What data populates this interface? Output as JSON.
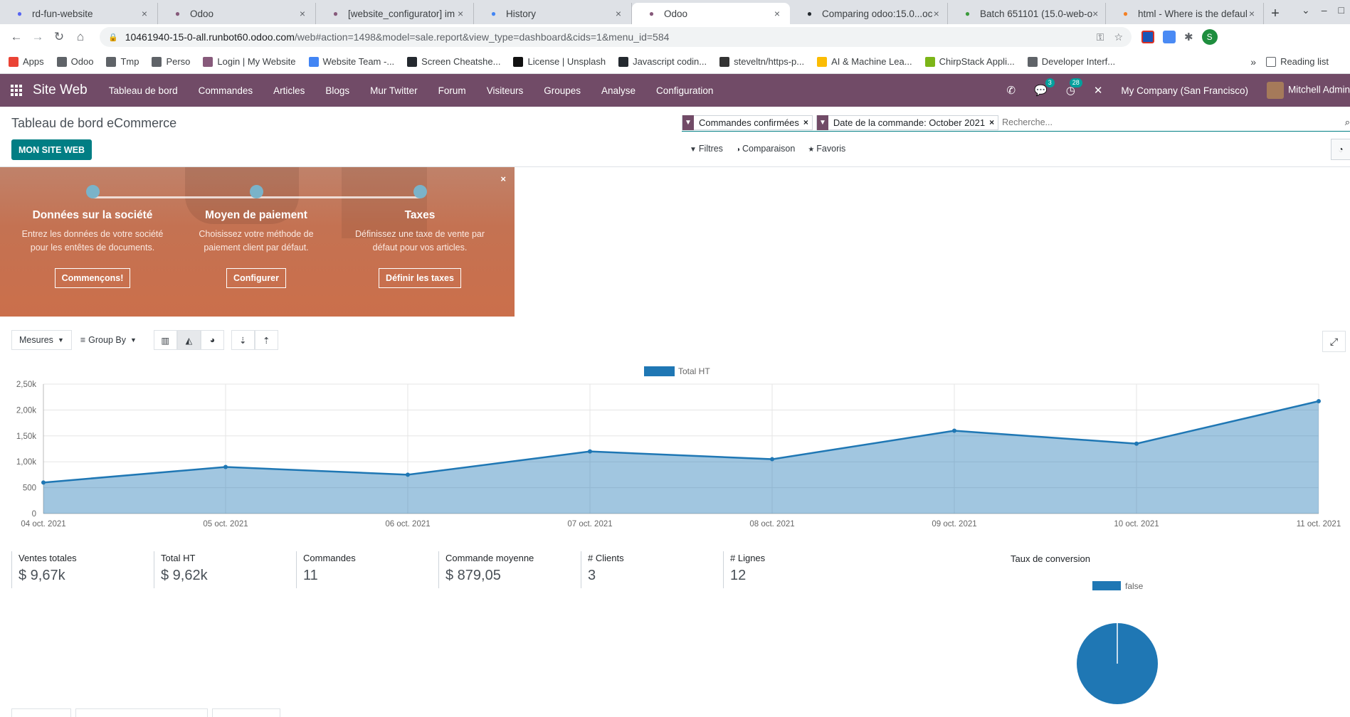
{
  "browser": {
    "tabs": [
      {
        "title": "rd-fun-website",
        "icon": "discord-icon",
        "color": "#5865f2"
      },
      {
        "title": "Odoo",
        "icon": "odoo-icon",
        "color": "#875a7b"
      },
      {
        "title": "[website_configurator] im",
        "icon": "odoo-icon",
        "color": "#875a7b"
      },
      {
        "title": "History",
        "icon": "history-icon",
        "color": "#4285f4"
      },
      {
        "title": "Odoo",
        "icon": "odoo-icon",
        "color": "#875a7b",
        "active": true
      },
      {
        "title": "Comparing odoo:15.0...oc",
        "icon": "github-icon",
        "color": "#24292f"
      },
      {
        "title": "Batch 651101 (15.0-web-o",
        "icon": "runbot-icon",
        "color": "#3c9b3c"
      },
      {
        "title": "html - Where is the defaul",
        "icon": "stackoverflow-icon",
        "color": "#f48024"
      }
    ],
    "url_host": "10461940-15-0-all.runbot60.odoo.com",
    "url_path": "/web#action=1498&model=sale.report&view_type=dashboard&cids=1&menu_id=584",
    "bookmarks": [
      {
        "label": "Apps",
        "color": "#ea4335"
      },
      {
        "label": "Odoo",
        "color": "#5f6368"
      },
      {
        "label": "Tmp",
        "color": "#5f6368"
      },
      {
        "label": "Perso",
        "color": "#5f6368"
      },
      {
        "label": "Login | My Website",
        "color": "#875a7b"
      },
      {
        "label": "Website Team -...",
        "color": "#4285f4"
      },
      {
        "label": "Screen Cheatshe...",
        "color": "#24292f"
      },
      {
        "label": "License | Unsplash",
        "color": "#111111"
      },
      {
        "label": "Javascript codin...",
        "color": "#24292f"
      },
      {
        "label": "steveltn/https-p...",
        "color": "#333333"
      },
      {
        "label": "AI & Machine Lea...",
        "color": "#fbbc04"
      },
      {
        "label": "ChirpStack Appli...",
        "color": "#7cb518"
      },
      {
        "label": "Developer Interf...",
        "color": "#5f6368"
      }
    ],
    "reading_list": "Reading list",
    "profile_initial": "S"
  },
  "navbar": {
    "brand": "Site Web",
    "menu": [
      "Tableau de bord",
      "Commandes",
      "Articles",
      "Blogs",
      "Mur Twitter",
      "Forum",
      "Visiteurs",
      "Groupes",
      "Analyse",
      "Configuration"
    ],
    "messages_count": "3",
    "activities_count": "28",
    "company": "My Company (San Francisco)",
    "user": "Mitchell Admin"
  },
  "control_panel": {
    "title": "Tableau de bord eCommerce",
    "primary_button": "MON SITE WEB",
    "facets": [
      "Commandes confirmées",
      "Date de la commande: October 2021"
    ],
    "search_placeholder": "Recherche...",
    "filters_label": "Filtres",
    "comparison_label": "Comparaison",
    "favorites_label": "Favoris"
  },
  "onboarding": {
    "steps": [
      {
        "title": "Données sur la société",
        "desc1": "Entrez les données de votre société",
        "desc2": "pour les entêtes de documents.",
        "button": "Commençons!"
      },
      {
        "title": "Moyen de paiement",
        "desc1": "Choisissez votre méthode de",
        "desc2": "paiement client par défaut.",
        "button": "Configurer"
      },
      {
        "title": "Taxes",
        "desc1": "Définissez une taxe de vente par",
        "desc2": "défaut pour vos articles.",
        "button": "Définir les taxes"
      }
    ]
  },
  "graph_toolbar": {
    "measures": "Mesures",
    "group_by": "Group By"
  },
  "chart_data": [
    {
      "type": "area",
      "title": "",
      "legend": [
        "Total HT"
      ],
      "legend_position": "top-center",
      "categories": [
        "04 oct. 2021",
        "05 oct. 2021",
        "06 oct. 2021",
        "07 oct. 2021",
        "08 oct. 2021",
        "09 oct. 2021",
        "10 oct. 2021",
        "11 oct. 2021"
      ],
      "series": [
        {
          "name": "Total HT",
          "values": [
            600,
            900,
            750,
            1200,
            1050,
            1600,
            1350,
            2170
          ]
        }
      ],
      "y_ticks": [
        "0",
        "500",
        "1,00k",
        "1,50k",
        "2,00k",
        "2,50k"
      ],
      "ylim": [
        0,
        2500
      ],
      "grid": true,
      "color": "#1f77b4"
    },
    {
      "type": "pie",
      "title": "Taux de conversion",
      "legend": [
        "false"
      ],
      "legend_position": "top-center",
      "categories": [
        "false"
      ],
      "values": [
        100
      ],
      "color": "#1f77b4"
    }
  ],
  "kpis": [
    {
      "label": "Ventes totales",
      "value": "$ 9,67k"
    },
    {
      "label": "Total HT",
      "value": "$ 9,62k"
    },
    {
      "label": "Commandes",
      "value": "11"
    },
    {
      "label": "Commande moyenne",
      "value": "$ 879,05"
    },
    {
      "label": "# Clients",
      "value": "3"
    },
    {
      "label": "# Lignes",
      "value": "12"
    }
  ]
}
